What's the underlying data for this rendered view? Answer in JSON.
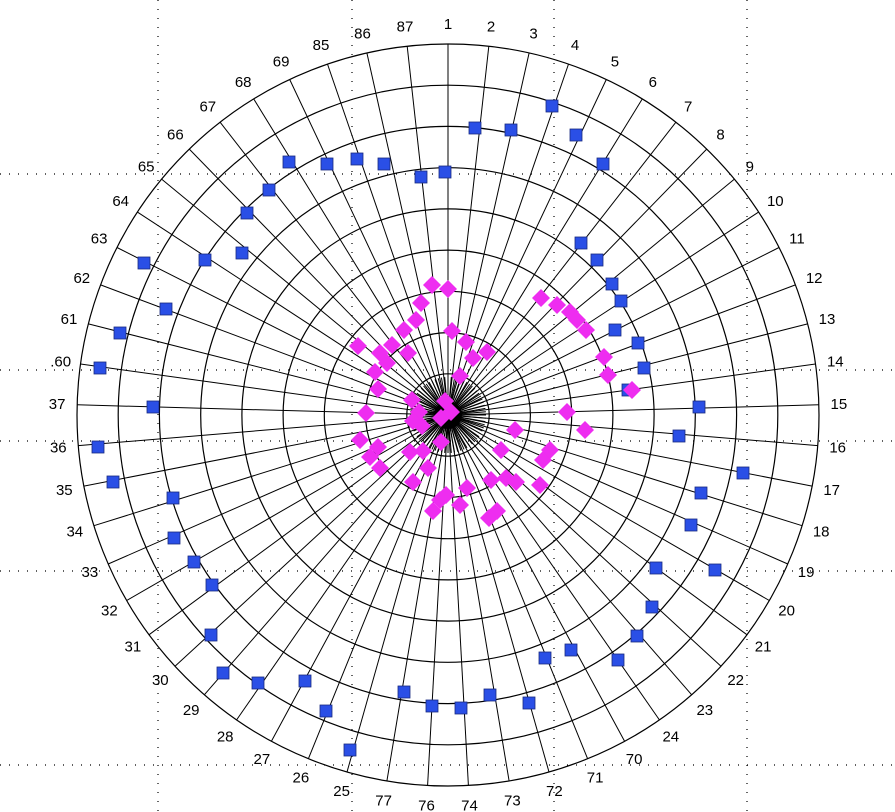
{
  "chart_data": {
    "type": "scatter",
    "coordinate_system": "polar",
    "grid": true,
    "rings": 9,
    "angle_labels": [
      "1",
      "2",
      "3",
      "4",
      "5",
      "6",
      "7",
      "8",
      "9",
      "10",
      "11",
      "12",
      "13",
      "14",
      "15",
      "16",
      "17",
      "18",
      "19",
      "20",
      "21",
      "22",
      "23",
      "24",
      "70",
      "71",
      "72",
      "73",
      "74",
      "76",
      "77",
      "25",
      "26",
      "27",
      "28",
      "29",
      "30",
      "31",
      "32",
      "33",
      "34",
      "35",
      "36",
      "37",
      ".60",
      "61",
      "62",
      "63",
      "64",
      "65",
      "66",
      "67",
      "68",
      "69",
      "85",
      "86",
      "87"
    ],
    "series": [
      {
        "marker": "square",
        "color": "#2a4fe6",
        "points": [
          {
            "x": 475,
            "y": 128
          },
          {
            "x": 511,
            "y": 130
          },
          {
            "x": 552,
            "y": 106
          },
          {
            "x": 576,
            "y": 135
          },
          {
            "x": 603,
            "y": 164
          },
          {
            "x": 445,
            "y": 172
          },
          {
            "x": 421,
            "y": 177
          },
          {
            "x": 384,
            "y": 164
          },
          {
            "x": 357,
            "y": 159
          },
          {
            "x": 327,
            "y": 164
          },
          {
            "x": 289,
            "y": 162
          },
          {
            "x": 269,
            "y": 190
          },
          {
            "x": 247,
            "y": 213
          },
          {
            "x": 242,
            "y": 253
          },
          {
            "x": 205,
            "y": 260
          },
          {
            "x": 144,
            "y": 263
          },
          {
            "x": 166,
            "y": 309
          },
          {
            "x": 120,
            "y": 333
          },
          {
            "x": 100,
            "y": 368
          },
          {
            "x": 153,
            "y": 407
          },
          {
            "x": 98,
            "y": 447
          },
          {
            "x": 113,
            "y": 482
          },
          {
            "x": 173,
            "y": 498
          },
          {
            "x": 174,
            "y": 538
          },
          {
            "x": 194,
            "y": 562
          },
          {
            "x": 212,
            "y": 585
          },
          {
            "x": 211,
            "y": 635
          },
          {
            "x": 223,
            "y": 673
          },
          {
            "x": 258,
            "y": 683
          },
          {
            "x": 305,
            "y": 681
          },
          {
            "x": 326,
            "y": 711
          },
          {
            "x": 350,
            "y": 750
          },
          {
            "x": 404,
            "y": 692
          },
          {
            "x": 432,
            "y": 706
          },
          {
            "x": 461,
            "y": 708
          },
          {
            "x": 490,
            "y": 695
          },
          {
            "x": 529,
            "y": 703
          },
          {
            "x": 545,
            "y": 658
          },
          {
            "x": 571,
            "y": 650
          },
          {
            "x": 618,
            "y": 660
          },
          {
            "x": 637,
            "y": 636
          },
          {
            "x": 652,
            "y": 607
          },
          {
            "x": 656,
            "y": 568
          },
          {
            "x": 715,
            "y": 570
          },
          {
            "x": 691,
            "y": 525
          },
          {
            "x": 701,
            "y": 493
          },
          {
            "x": 743,
            "y": 473
          },
          {
            "x": 679,
            "y": 436
          },
          {
            "x": 699,
            "y": 407
          },
          {
            "x": 628,
            "y": 390
          },
          {
            "x": 644,
            "y": 368
          },
          {
            "x": 638,
            "y": 343
          },
          {
            "x": 615,
            "y": 330
          },
          {
            "x": 621,
            "y": 301
          },
          {
            "x": 612,
            "y": 284
          },
          {
            "x": 597,
            "y": 260
          },
          {
            "x": 581,
            "y": 243
          }
        ]
      },
      {
        "marker": "diamond",
        "color": "#ee2df0",
        "points": [
          {
            "x": 432,
            "y": 285
          },
          {
            "x": 448,
            "y": 289
          },
          {
            "x": 421,
            "y": 303
          },
          {
            "x": 416,
            "y": 320
          },
          {
            "x": 404,
            "y": 330
          },
          {
            "x": 392,
            "y": 345
          },
          {
            "x": 380,
            "y": 353
          },
          {
            "x": 358,
            "y": 346
          },
          {
            "x": 375,
            "y": 372
          },
          {
            "x": 387,
            "y": 363
          },
          {
            "x": 408,
            "y": 353
          },
          {
            "x": 452,
            "y": 331
          },
          {
            "x": 466,
            "y": 342
          },
          {
            "x": 487,
            "y": 352
          },
          {
            "x": 473,
            "y": 358
          },
          {
            "x": 460,
            "y": 376
          },
          {
            "x": 378,
            "y": 389
          },
          {
            "x": 366,
            "y": 413
          },
          {
            "x": 412,
            "y": 400
          },
          {
            "x": 419,
            "y": 412
          },
          {
            "x": 413,
            "y": 421
          },
          {
            "x": 422,
            "y": 426
          },
          {
            "x": 441,
            "y": 418
          },
          {
            "x": 451,
            "y": 412
          },
          {
            "x": 445,
            "y": 401
          },
          {
            "x": 360,
            "y": 440
          },
          {
            "x": 378,
            "y": 447
          },
          {
            "x": 370,
            "y": 457
          },
          {
            "x": 380,
            "y": 468
          },
          {
            "x": 410,
            "y": 452
          },
          {
            "x": 423,
            "y": 451
          },
          {
            "x": 428,
            "y": 468
          },
          {
            "x": 441,
            "y": 442
          },
          {
            "x": 413,
            "y": 482
          },
          {
            "x": 440,
            "y": 500
          },
          {
            "x": 433,
            "y": 511
          },
          {
            "x": 446,
            "y": 495
          },
          {
            "x": 460,
            "y": 505
          },
          {
            "x": 467,
            "y": 488
          },
          {
            "x": 491,
            "y": 480
          },
          {
            "x": 501,
            "y": 450
          },
          {
            "x": 515,
            "y": 430
          },
          {
            "x": 506,
            "y": 478
          },
          {
            "x": 516,
            "y": 482
          },
          {
            "x": 497,
            "y": 511
          },
          {
            "x": 489,
            "y": 518
          },
          {
            "x": 540,
            "y": 485
          },
          {
            "x": 543,
            "y": 460
          },
          {
            "x": 550,
            "y": 450
          },
          {
            "x": 567,
            "y": 412
          },
          {
            "x": 585,
            "y": 430
          },
          {
            "x": 541,
            "y": 298
          },
          {
            "x": 557,
            "y": 305
          },
          {
            "x": 570,
            "y": 312
          },
          {
            "x": 577,
            "y": 320
          },
          {
            "x": 586,
            "y": 330
          },
          {
            "x": 604,
            "y": 357
          },
          {
            "x": 608,
            "y": 375
          },
          {
            "x": 632,
            "y": 390
          }
        ]
      }
    ]
  }
}
